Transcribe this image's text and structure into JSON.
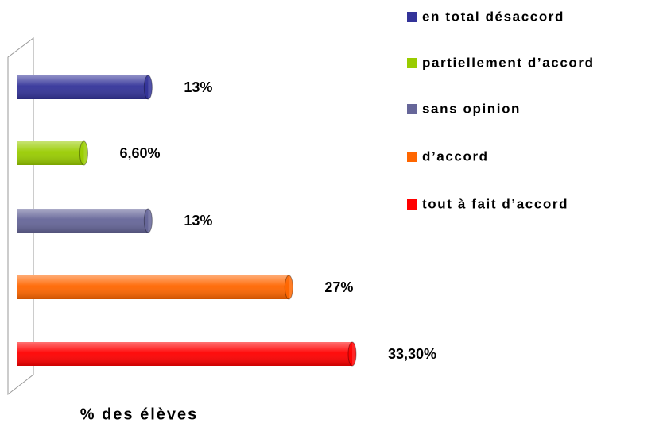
{
  "chart_data": {
    "type": "bar",
    "orientation": "horizontal",
    "categories": [
      "en total désaccord",
      "partiellement d’accord",
      "sans opinion",
      "d’accord",
      "tout à fait d’accord"
    ],
    "values": [
      13,
      6.6,
      13,
      27,
      33.3
    ],
    "value_labels": [
      "13%",
      "6,60%",
      "13%",
      "27%",
      "33,30%"
    ],
    "colors": [
      "#333399",
      "#99cc00",
      "#666699",
      "#ff6600",
      "#ff0000"
    ],
    "xlabel": "% des élèves",
    "legend": "right"
  }
}
